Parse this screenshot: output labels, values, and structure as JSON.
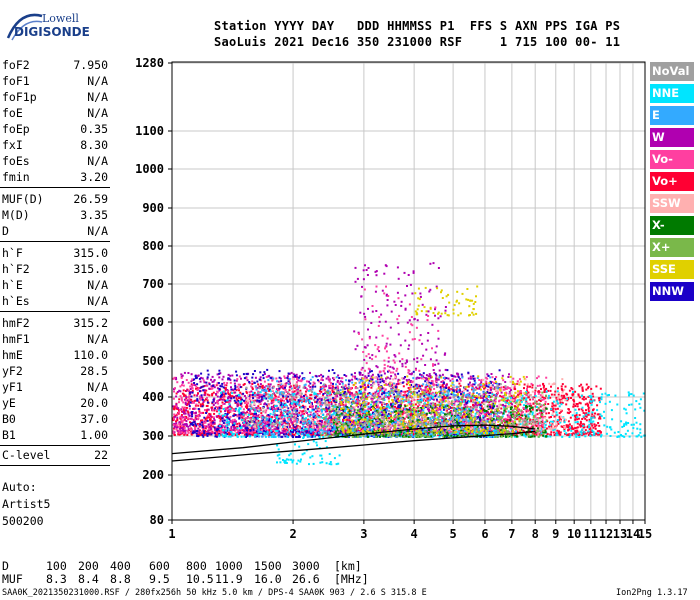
{
  "logo": {
    "line1": "Lowell",
    "line2": "DIGISONDE"
  },
  "header": {
    "line1": "Station YYYY DAY   DDD HHMMSS P1  FFS S AXN PPS IGA PS",
    "line2": "SaoLuis 2021 Dec16 350 231000 RSF     1 715 100 00- 11"
  },
  "params": {
    "g1": [
      {
        "k": "foF2",
        "v": "7.950"
      },
      {
        "k": "foF1",
        "v": "N/A"
      },
      {
        "k": "foF1p",
        "v": "N/A"
      },
      {
        "k": "foE",
        "v": "N/A"
      },
      {
        "k": "foEp",
        "v": "0.35"
      },
      {
        "k": "fxI",
        "v": "8.30"
      },
      {
        "k": "foEs",
        "v": "N/A"
      },
      {
        "k": "fmin",
        "v": "3.20"
      }
    ],
    "g2": [
      {
        "k": "MUF(D)",
        "v": "26.59"
      },
      {
        "k": "M(D)",
        "v": "3.35"
      },
      {
        "k": "D",
        "v": "N/A"
      }
    ],
    "g3": [
      {
        "k": "h`F",
        "v": "315.0"
      },
      {
        "k": "h`F2",
        "v": "315.0"
      },
      {
        "k": "h`E",
        "v": "N/A"
      },
      {
        "k": "h`Es",
        "v": "N/A"
      }
    ],
    "g4": [
      {
        "k": "hmF2",
        "v": "315.2"
      },
      {
        "k": "hmF1",
        "v": "N/A"
      },
      {
        "k": "hmE",
        "v": "110.0"
      },
      {
        "k": "yF2",
        "v": "28.5"
      },
      {
        "k": "yF1",
        "v": "N/A"
      },
      {
        "k": "yE",
        "v": "20.0"
      },
      {
        "k": "B0",
        "v": "37.0"
      },
      {
        "k": "B1",
        "v": "1.00"
      }
    ],
    "clevel": {
      "k": "C-level",
      "v": "22"
    }
  },
  "auto": {
    "line1": "Auto:",
    "line2": "Artist5",
    "line3": "500200"
  },
  "legend": [
    {
      "label": "NoVal",
      "color": "#a0a0a0"
    },
    {
      "label": "NNE",
      "color": "#00e5ff"
    },
    {
      "label": "E",
      "color": "#33aaff"
    },
    {
      "label": "W",
      "color": "#b000b0"
    },
    {
      "label": "Vo-",
      "color": "#ff3fa0"
    },
    {
      "label": "Vo+",
      "color": "#ff0033"
    },
    {
      "label": "SSW",
      "color": "#ffb0b0"
    },
    {
      "label": "X-",
      "color": "#007a00"
    },
    {
      "label": "X+",
      "color": "#7ab84a"
    },
    {
      "label": "SSE",
      "color": "#e0d000"
    },
    {
      "label": "NNW",
      "color": "#1a00c8"
    }
  ],
  "muf_table": {
    "d_label": "D",
    "d_values": [
      "100",
      "200",
      "400",
      "600",
      "800",
      "1000",
      "1500",
      "3000"
    ],
    "d_unit": "[km]",
    "muf_label": "MUF",
    "muf_values": [
      "8.3",
      "8.4",
      "8.8",
      "9.5",
      "10.5",
      "11.9",
      "16.0",
      "26.6"
    ],
    "muf_unit": "[MHz]"
  },
  "footer": {
    "left": "SAA0K_2021350231000.RSF / 280fx256h 50 kHz 5.0 km / DPS-4 SAA0K 903 / 2.6 S 315.8 E",
    "right": "Ion2Png 1.3.17"
  },
  "chart_data": {
    "type": "scatter",
    "xlim": [
      1,
      15
    ],
    "ylim": [
      80,
      1280
    ],
    "x_ticks": [
      1,
      2,
      3,
      4,
      5,
      6,
      7,
      8,
      9,
      10,
      11,
      12,
      13,
      14,
      15
    ],
    "y_ticks": [
      80,
      200,
      300,
      400,
      500,
      600,
      700,
      800,
      900,
      1000,
      1100,
      1280
    ],
    "grid": true,
    "x_scale": "log",
    "trace": {
      "name": "",
      "x": [
        1.0,
        1.3,
        1.6,
        2.0,
        2.5,
        3.0,
        3.5,
        4.0,
        5.0,
        6.0,
        7.0,
        8.0
      ],
      "y": [
        236,
        246,
        254,
        262,
        270,
        277,
        283,
        288,
        295,
        301,
        306,
        312
      ]
    },
    "trace2": {
      "name": "",
      "x": [
        1.0,
        1.5,
        2.0,
        3.0,
        4.0,
        5.0,
        6.0,
        7.0,
        8.0
      ],
      "y": [
        255,
        270,
        285,
        305,
        318,
        326,
        328,
        325,
        318
      ]
    },
    "clusters": [
      {
        "color_index": 5,
        "x": [
          1.0,
          11.6
        ],
        "y": [
          305,
          440
        ],
        "weight": 6
      },
      {
        "color_index": 3,
        "x": [
          1.0,
          7.2
        ],
        "y": [
          310,
          470
        ],
        "weight": 4
      },
      {
        "color_index": 4,
        "x": [
          1.0,
          8.5
        ],
        "y": [
          310,
          460
        ],
        "weight": 3
      },
      {
        "color_index": 10,
        "x": [
          1.1,
          6.5
        ],
        "y": [
          300,
          480
        ],
        "weight": 3
      },
      {
        "color_index": 1,
        "x": [
          1.3,
          15.0
        ],
        "y": [
          300,
          420
        ],
        "weight": 2
      },
      {
        "color_index": 2,
        "x": [
          1.6,
          6.5
        ],
        "y": [
          300,
          460
        ],
        "weight": 2
      },
      {
        "color_index": 7,
        "x": [
          2.5,
          8.5
        ],
        "y": [
          300,
          380
        ],
        "weight": 2
      },
      {
        "color_index": 8,
        "x": [
          2.3,
          8.5
        ],
        "y": [
          300,
          420
        ],
        "weight": 2
      },
      {
        "color_index": 9,
        "x": [
          2.6,
          7.5
        ],
        "y": [
          310,
          460
        ],
        "weight": 2
      },
      {
        "color_index": 6,
        "x": [
          1.5,
          9.5
        ],
        "y": [
          320,
          460
        ],
        "weight": 1
      },
      {
        "color_index": 0,
        "x": [
          1.5,
          8.5
        ],
        "y": [
          330,
          440
        ],
        "weight": 1
      },
      {
        "color_index": 3,
        "x": [
          2.8,
          4.8
        ],
        "y": [
          450,
          760
        ],
        "weight": 2
      },
      {
        "color_index": 4,
        "x": [
          2.9,
          4.6
        ],
        "y": [
          470,
          700
        ],
        "weight": 1
      },
      {
        "color_index": 9,
        "x": [
          4.0,
          5.8
        ],
        "y": [
          620,
          700
        ],
        "weight": 1
      },
      {
        "color_index": 1,
        "x": [
          1.8,
          2.6
        ],
        "y": [
          230,
          300
        ],
        "weight": 1
      }
    ]
  }
}
